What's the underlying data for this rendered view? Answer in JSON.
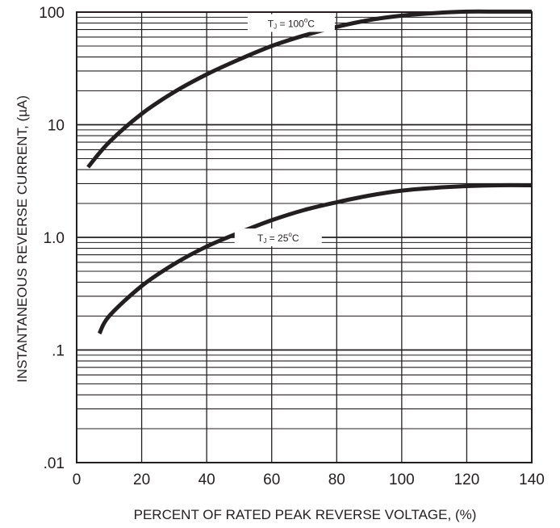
{
  "chart_data": {
    "type": "line",
    "xlabel": "PERCENT OF RATED PEAK REVERSE VOLTAGE, (%)",
    "ylabel": "INSTANTANEOUS REVERSE CURRENT, (µA)",
    "x_scale": "linear",
    "y_scale": "log",
    "xlim": [
      0,
      140
    ],
    "ylim": [
      0.01,
      100
    ],
    "x_ticks": [
      0,
      20,
      40,
      60,
      80,
      100,
      120,
      140
    ],
    "x_tick_labels": [
      "0",
      "20",
      "40",
      "60",
      "80",
      "100",
      "120",
      "140"
    ],
    "y_ticks": [
      0.01,
      0.1,
      1,
      10,
      100
    ],
    "y_tick_labels": [
      ".01",
      ".1",
      "1.0",
      "10",
      "100"
    ],
    "grid": true,
    "series": [
      {
        "label_main": "T",
        "label_sub": "J",
        "label_rest": " = 100",
        "label_deg": "o",
        "label_unit": "C",
        "color": "#231f20",
        "x": [
          3.5,
          10,
          20,
          30,
          40,
          50,
          60,
          70,
          80,
          90,
          100,
          110,
          120,
          130,
          140
        ],
        "y": [
          4.2,
          7.0,
          12.5,
          19.5,
          28,
          38,
          50,
          62,
          74,
          85,
          93,
          98,
          101,
          101,
          101
        ]
      },
      {
        "label_main": "T",
        "label_sub": "J",
        "label_rest": " = 25",
        "label_deg": "o",
        "label_unit": "C",
        "color": "#231f20",
        "x": [
          7,
          10,
          20,
          30,
          40,
          50,
          60,
          70,
          80,
          90,
          100,
          110,
          120,
          130,
          140
        ],
        "y": [
          0.14,
          0.2,
          0.37,
          0.58,
          0.83,
          1.1,
          1.42,
          1.75,
          2.05,
          2.35,
          2.6,
          2.75,
          2.85,
          2.9,
          2.9
        ]
      }
    ]
  }
}
